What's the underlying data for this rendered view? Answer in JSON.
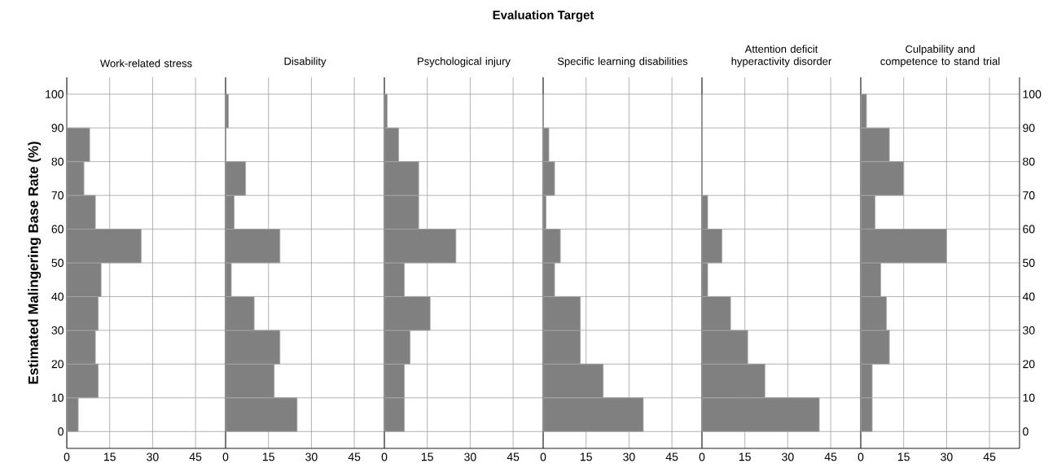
{
  "chart_data": [
    {
      "type": "histogram",
      "orientation": "horizontal",
      "title": "Work-related stress",
      "ylabel": "Estimated Malingering Base Rate (%)",
      "annotations": [
        "Evaluation Target"
      ],
      "color": "#808080",
      "grid": true,
      "bins": [
        0,
        10,
        20,
        30,
        40,
        50,
        60,
        70,
        80,
        90,
        100
      ],
      "values": [
        4,
        11,
        10,
        11,
        12,
        26,
        10,
        6,
        8,
        0
      ],
      "xlim": [
        0,
        55.5
      ],
      "xticks": [
        0,
        15,
        30,
        45
      ],
      "ylim": [
        -5,
        105
      ],
      "yticks": [
        0,
        10,
        20,
        30,
        40,
        50,
        60,
        70,
        80,
        90,
        100
      ]
    },
    {
      "type": "histogram",
      "orientation": "horizontal",
      "title": "Disability",
      "color": "#808080",
      "grid": true,
      "tick_labels": "x",
      "bins": [
        0,
        10,
        20,
        30,
        40,
        50,
        60,
        70,
        80,
        90,
        100
      ],
      "values": [
        25,
        17,
        19,
        10,
        2,
        19,
        3,
        7,
        0,
        1
      ],
      "xlim": [
        0,
        55.5
      ],
      "xticks": [
        0,
        15,
        30,
        45
      ],
      "ylim": [
        -5,
        105
      ],
      "yticks": [
        0,
        10,
        20,
        30,
        40,
        50,
        60,
        70,
        80,
        90,
        100
      ]
    },
    {
      "type": "histogram",
      "orientation": "horizontal",
      "title": "Psychological injury",
      "color": "#808080",
      "grid": true,
      "tick_labels": "x",
      "bins": [
        0,
        10,
        20,
        30,
        40,
        50,
        60,
        70,
        80,
        90,
        100
      ],
      "values": [
        7,
        7,
        9,
        16,
        7,
        25,
        12,
        12,
        5,
        1
      ],
      "xlim": [
        0,
        55.5
      ],
      "xticks": [
        0,
        15,
        30,
        45
      ],
      "ylim": [
        -5,
        105
      ],
      "yticks": [
        0,
        10,
        20,
        30,
        40,
        50,
        60,
        70,
        80,
        90,
        100
      ]
    },
    {
      "type": "histogram",
      "orientation": "horizontal",
      "title": "Specific learning disabilities",
      "color": "#808080",
      "grid": true,
      "tick_labels": "x",
      "bins": [
        0,
        10,
        20,
        30,
        40,
        50,
        60,
        70,
        80,
        90,
        100
      ],
      "values": [
        35,
        21,
        13,
        13,
        4,
        6,
        1,
        4,
        2,
        0
      ],
      "xlim": [
        0,
        55.5
      ],
      "xticks": [
        0,
        15,
        30,
        45
      ],
      "ylim": [
        -5,
        105
      ],
      "yticks": [
        0,
        10,
        20,
        30,
        40,
        50,
        60,
        70,
        80,
        90,
        100
      ]
    },
    {
      "type": "histogram",
      "orientation": "horizontal",
      "title": "Attention deficit hyperactivity disorder",
      "color": "#808080",
      "grid": true,
      "tick_labels": "x",
      "bins": [
        0,
        10,
        20,
        30,
        40,
        50,
        60,
        70,
        80,
        90,
        100
      ],
      "values": [
        41,
        22,
        16,
        10,
        2,
        7,
        2,
        0,
        0,
        0
      ],
      "xlim": [
        0,
        55.5
      ],
      "xticks": [
        0,
        15,
        30,
        45
      ],
      "ylim": [
        -5,
        105
      ],
      "yticks": [
        0,
        10,
        20,
        30,
        40,
        50,
        60,
        70,
        80,
        90,
        100
      ]
    },
    {
      "type": "histogram",
      "orientation": "horizontal",
      "title": "Culpability and competence to stand trial",
      "color": "#808080",
      "grid": true,
      "bins": [
        0,
        10,
        20,
        30,
        40,
        50,
        60,
        70,
        80,
        90,
        100
      ],
      "values": [
        4,
        4,
        10,
        9,
        7,
        30,
        5,
        15,
        10,
        2
      ],
      "xlim": [
        0,
        55.5
      ],
      "xticks": [
        0,
        15,
        30,
        45
      ],
      "ylim": [
        -5,
        105
      ],
      "yticks": [
        0,
        10,
        20,
        30,
        40,
        50,
        60,
        70,
        80,
        90,
        100
      ]
    }
  ]
}
